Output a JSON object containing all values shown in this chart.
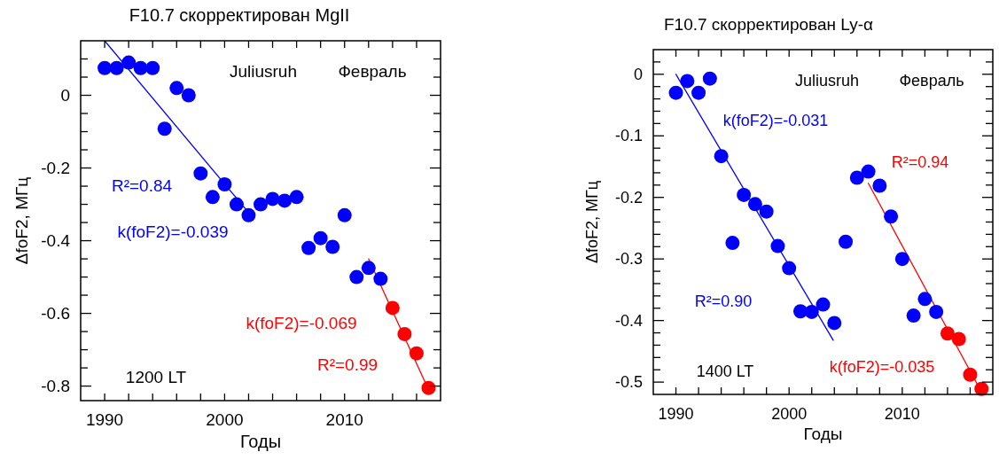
{
  "chart_data": [
    {
      "type": "scatter",
      "title": "F10.7 скорректирован MgII",
      "xlabel": "Годы",
      "ylabel": "ΔfoF2, МГц",
      "xlim": [
        1988,
        2018
      ],
      "ylim": [
        -0.84,
        0.15
      ],
      "line_style": "solid",
      "xticks": [
        1990,
        {
          "value": 1992,
          "label": null
        },
        {
          "value": 1994,
          "label": null
        },
        {
          "value": 1996,
          "label": null
        },
        {
          "value": 1998,
          "label": null
        },
        2000,
        {
          "value": 2002,
          "label": null
        },
        {
          "value": 2004,
          "label": null
        },
        {
          "value": 2006,
          "label": null
        },
        {
          "value": 2008,
          "label": null
        },
        2010,
        {
          "value": 2012,
          "label": null
        },
        {
          "value": 2014,
          "label": null
        },
        {
          "value": 2016,
          "label": null
        }
      ],
      "yticks": [
        -0.8,
        {
          "value": -0.75,
          "label": null
        },
        {
          "value": -0.7,
          "label": null
        },
        {
          "value": -0.65,
          "label": null
        },
        -0.6,
        {
          "value": -0.55,
          "label": null
        },
        {
          "value": -0.5,
          "label": null
        },
        {
          "value": -0.45,
          "label": null
        },
        -0.4,
        {
          "value": -0.35,
          "label": null
        },
        {
          "value": -0.3,
          "label": null
        },
        {
          "value": -0.25,
          "label": null
        },
        -0.2,
        {
          "value": -0.15,
          "label": null
        },
        {
          "value": -0.1,
          "label": null
        },
        {
          "value": -0.05,
          "label": null
        },
        0,
        {
          "value": 0.05,
          "label": null
        },
        {
          "value": 0.1,
          "label": null
        }
      ],
      "series": [
        {
          "type": "line",
          "color": "#0000ff",
          "x": [
            1990,
            2001.8
          ],
          "values": [
            0.15,
            -0.315
          ]
        },
        {
          "type": "line",
          "color": "#ff0000",
          "x": [
            2012,
            2017
          ],
          "values": [
            -0.45,
            -0.81
          ]
        },
        {
          "marker": "circle",
          "color": "#0000ff",
          "x": [
            1990,
            1991,
            1992,
            1993,
            1994,
            1995,
            1996,
            1997,
            1998,
            1999,
            2000,
            2001,
            2002,
            2003,
            2004,
            2005,
            2006,
            2007,
            2008,
            2009,
            2010,
            2011,
            2012,
            2013
          ],
          "values": [
            0.075,
            0.075,
            0.09,
            0.075,
            0.075,
            -0.092,
            0.02,
            0.0,
            -0.215,
            -0.28,
            -0.245,
            -0.3,
            -0.33,
            -0.3,
            -0.285,
            -0.29,
            -0.28,
            -0.42,
            -0.393,
            -0.417,
            -0.33,
            -0.5,
            -0.475,
            -0.505
          ]
        },
        {
          "marker": "circle",
          "color": "#ff0000",
          "x": [
            2014,
            2015,
            2016,
            2017
          ],
          "values": [
            -0.585,
            -0.657,
            -0.71,
            -0.805
          ]
        }
      ],
      "annotations": [
        "Juliusruh",
        "Февраль",
        "1200 LT",
        "R²=0.84",
        "k(foF2)=-0.039",
        "k(foF2)=-0.069",
        "R²=0.99"
      ]
    },
    {
      "type": "scatter",
      "title": "F10.7 скорректирован Ly-α",
      "xlabel": "Годы",
      "ylabel": "ΔfoF2, МГц",
      "xlim": [
        1988,
        2018
      ],
      "ylim": [
        -0.52,
        0.04
      ],
      "line_style": "solid",
      "xticks": [
        1990,
        {
          "value": 1992,
          "label": null
        },
        {
          "value": 1994,
          "label": null
        },
        {
          "value": 1996,
          "label": null
        },
        {
          "value": 1998,
          "label": null
        },
        2000,
        {
          "value": 2002,
          "label": null
        },
        {
          "value": 2004,
          "label": null
        },
        {
          "value": 2006,
          "label": null
        },
        {
          "value": 2008,
          "label": null
        },
        2010,
        {
          "value": 2012,
          "label": null
        },
        {
          "value": 2014,
          "label": null
        },
        {
          "value": 2016,
          "label": null
        }
      ],
      "yticks": [
        -0.5,
        {
          "value": -0.48,
          "label": null
        },
        {
          "value": -0.46,
          "label": null
        },
        {
          "value": -0.44,
          "label": null
        },
        {
          "value": -0.42,
          "label": null
        },
        -0.4,
        {
          "value": -0.38,
          "label": null
        },
        {
          "value": -0.36,
          "label": null
        },
        {
          "value": -0.34,
          "label": null
        },
        {
          "value": -0.32,
          "label": null
        },
        -0.3,
        {
          "value": -0.28,
          "label": null
        },
        {
          "value": -0.26,
          "label": null
        },
        {
          "value": -0.24,
          "label": null
        },
        {
          "value": -0.22,
          "label": null
        },
        -0.2,
        {
          "value": -0.18,
          "label": null
        },
        {
          "value": -0.16,
          "label": null
        },
        {
          "value": -0.14,
          "label": null
        },
        {
          "value": -0.12,
          "label": null
        },
        -0.1,
        {
          "value": -0.08,
          "label": null
        },
        {
          "value": -0.06,
          "label": null
        },
        {
          "value": -0.04,
          "label": null
        },
        {
          "value": -0.02,
          "label": null
        },
        0,
        {
          "value": 0.02,
          "label": null
        }
      ],
      "series": [
        {
          "type": "line",
          "color": "#0000ff",
          "x": [
            1990,
            2003.9
          ],
          "values": [
            0.0,
            -0.432
          ]
        },
        {
          "type": "line",
          "color": "#ff0000",
          "x": [
            2007,
            2017
          ],
          "values": [
            -0.177,
            -0.516
          ]
        },
        {
          "marker": "circle",
          "color": "#0000ff",
          "x": [
            1990,
            1991,
            1992,
            1993,
            1994,
            1995,
            1996,
            1997,
            1998,
            1999,
            2000,
            2001,
            2002,
            2003,
            2004,
            2005,
            2006,
            2007,
            2008,
            2009,
            2010,
            2011,
            2012,
            2013
          ],
          "values": [
            -0.03,
            -0.011,
            -0.03,
            -0.007,
            -0.133,
            -0.274,
            -0.196,
            -0.211,
            -0.223,
            -0.279,
            -0.315,
            -0.385,
            -0.386,
            -0.374,
            -0.404,
            -0.272,
            -0.168,
            -0.158,
            -0.181,
            -0.231,
            -0.3,
            -0.392,
            -0.365,
            -0.386
          ]
        },
        {
          "marker": "circle",
          "color": "#ff0000",
          "x": [
            2014,
            2015,
            2016,
            2017
          ],
          "values": [
            -0.421,
            -0.43,
            -0.488,
            -0.511
          ]
        }
      ],
      "annotations": [
        "Juliusruh",
        "Февраль",
        "1400 LT",
        "k(foF2)=-0.031",
        "R²=0.94",
        "R²=0.90",
        "k(foF2)=-0.035"
      ]
    }
  ]
}
